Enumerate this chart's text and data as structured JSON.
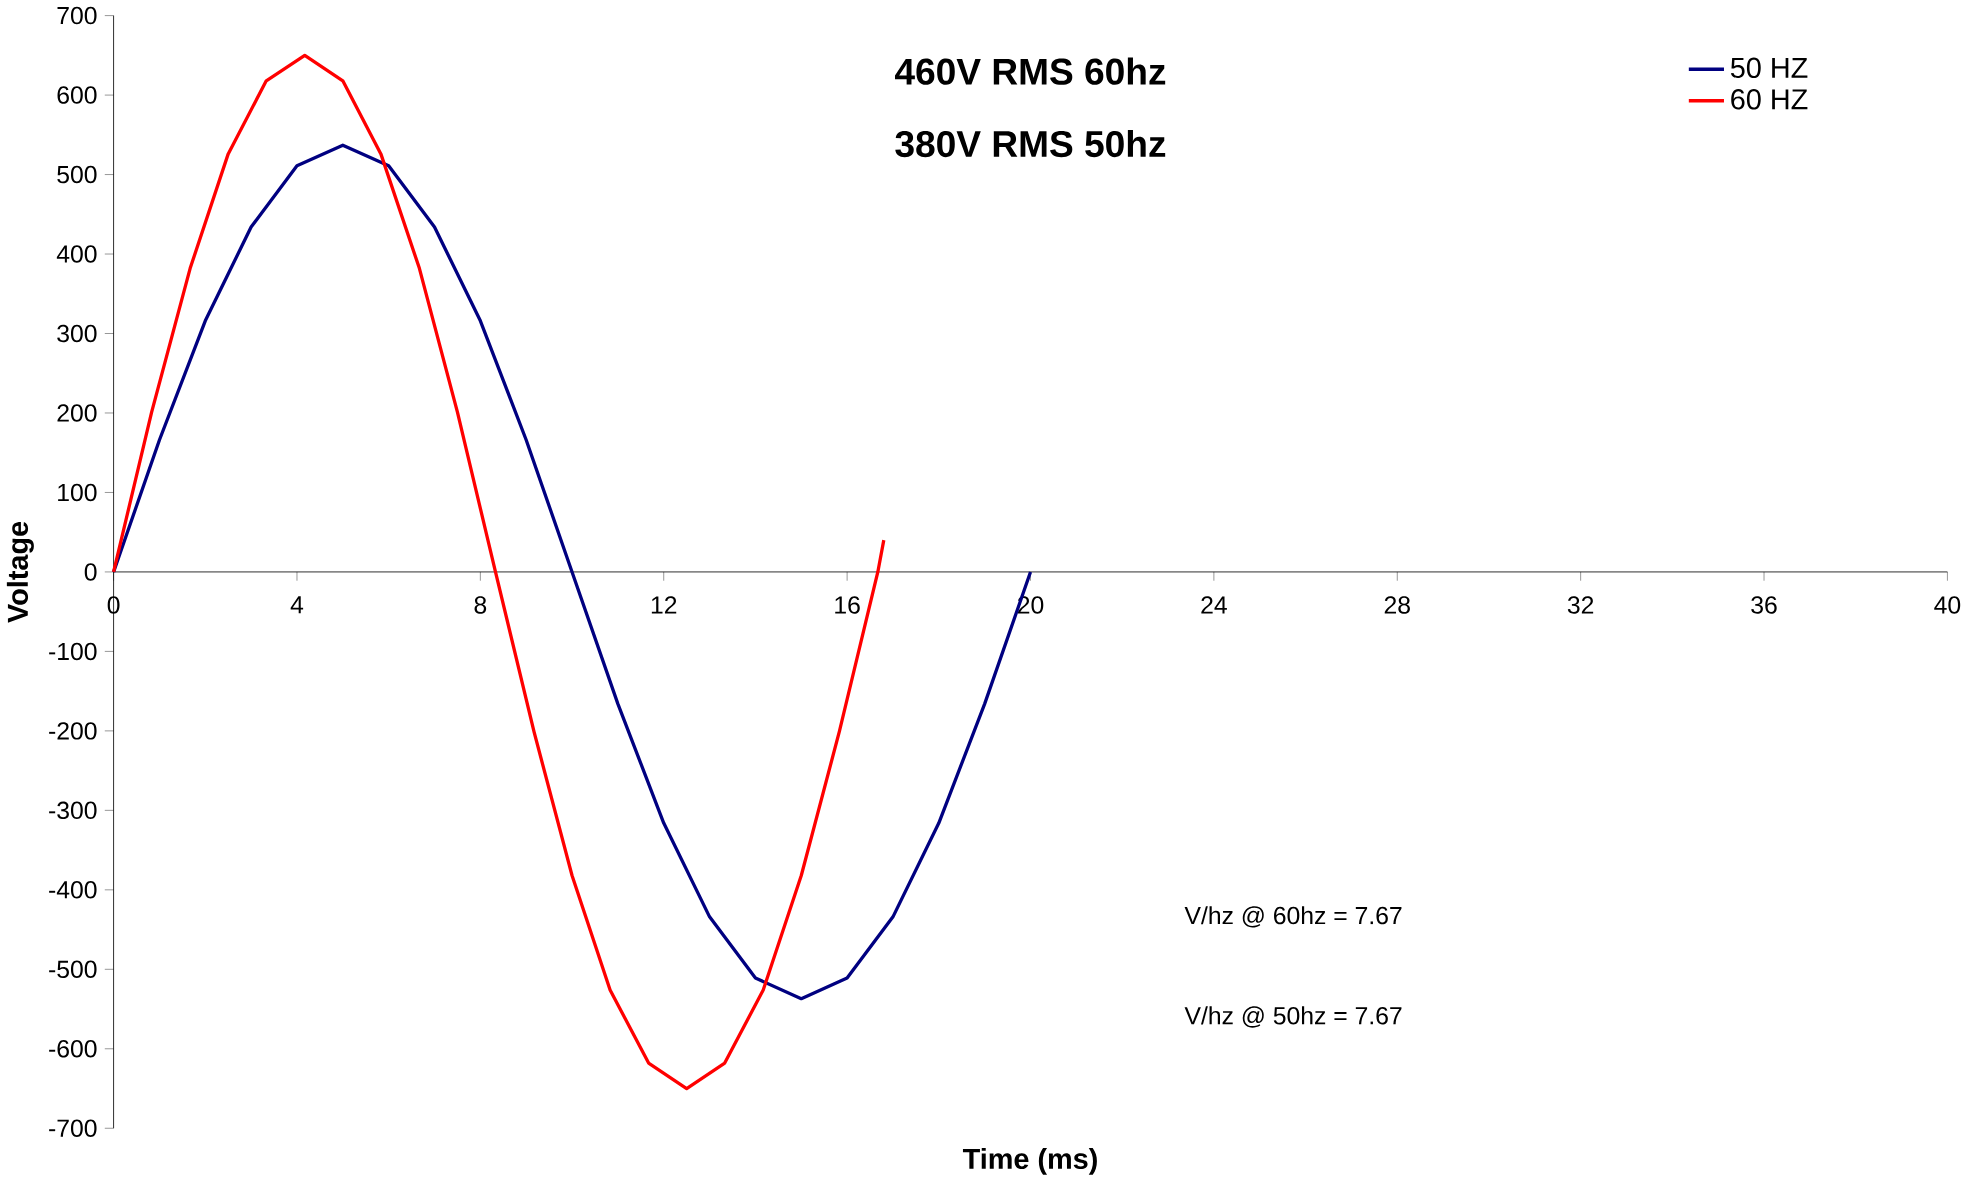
{
  "chart_data": {
    "type": "line",
    "xlabel": "Time (ms)",
    "ylabel": "Voltage",
    "annotations": [
      "460V RMS 60hz",
      "380V RMS 50hz",
      "V/hz @ 60hz = 7.67",
      "V/hz @ 50hz = 7.67"
    ],
    "xlim": [
      0,
      40
    ],
    "xticks": [
      0,
      4,
      8,
      12,
      16,
      20,
      24,
      28,
      32,
      36,
      40
    ],
    "ylim": [
      -700,
      700
    ],
    "yticks": [
      -700,
      -600,
      -500,
      -400,
      -300,
      -200,
      -100,
      0,
      100,
      200,
      300,
      400,
      500,
      600,
      700
    ],
    "legend": "top right",
    "series": [
      {
        "name": "50 HZ",
        "color": "#000080",
        "x": [
          0,
          1,
          2,
          3,
          4,
          5,
          6,
          7,
          8,
          9,
          10,
          11,
          12,
          13,
          14,
          15,
          16,
          17,
          18,
          19,
          20
        ],
        "values": [
          0,
          166,
          316,
          434,
          511,
          537,
          511,
          434,
          316,
          166,
          0,
          -166,
          -316,
          -434,
          -511,
          -537,
          -511,
          -434,
          -316,
          -166,
          0
        ]
      },
      {
        "name": "60 HZ",
        "color": "#ff0000",
        "x": [
          0,
          0.83,
          1.67,
          2.5,
          3.33,
          4.17,
          5,
          5.83,
          6.67,
          7.5,
          8.33,
          9.17,
          10,
          10.83,
          11.67,
          12.5,
          13.33,
          14.17,
          15,
          15.83,
          16.67,
          16.8
        ],
        "values": [
          0,
          201,
          382,
          526,
          618,
          650,
          618,
          526,
          382,
          201,
          0,
          -201,
          -382,
          -526,
          -618,
          -650,
          -618,
          -526,
          -382,
          -201,
          0,
          40
        ]
      }
    ]
  }
}
